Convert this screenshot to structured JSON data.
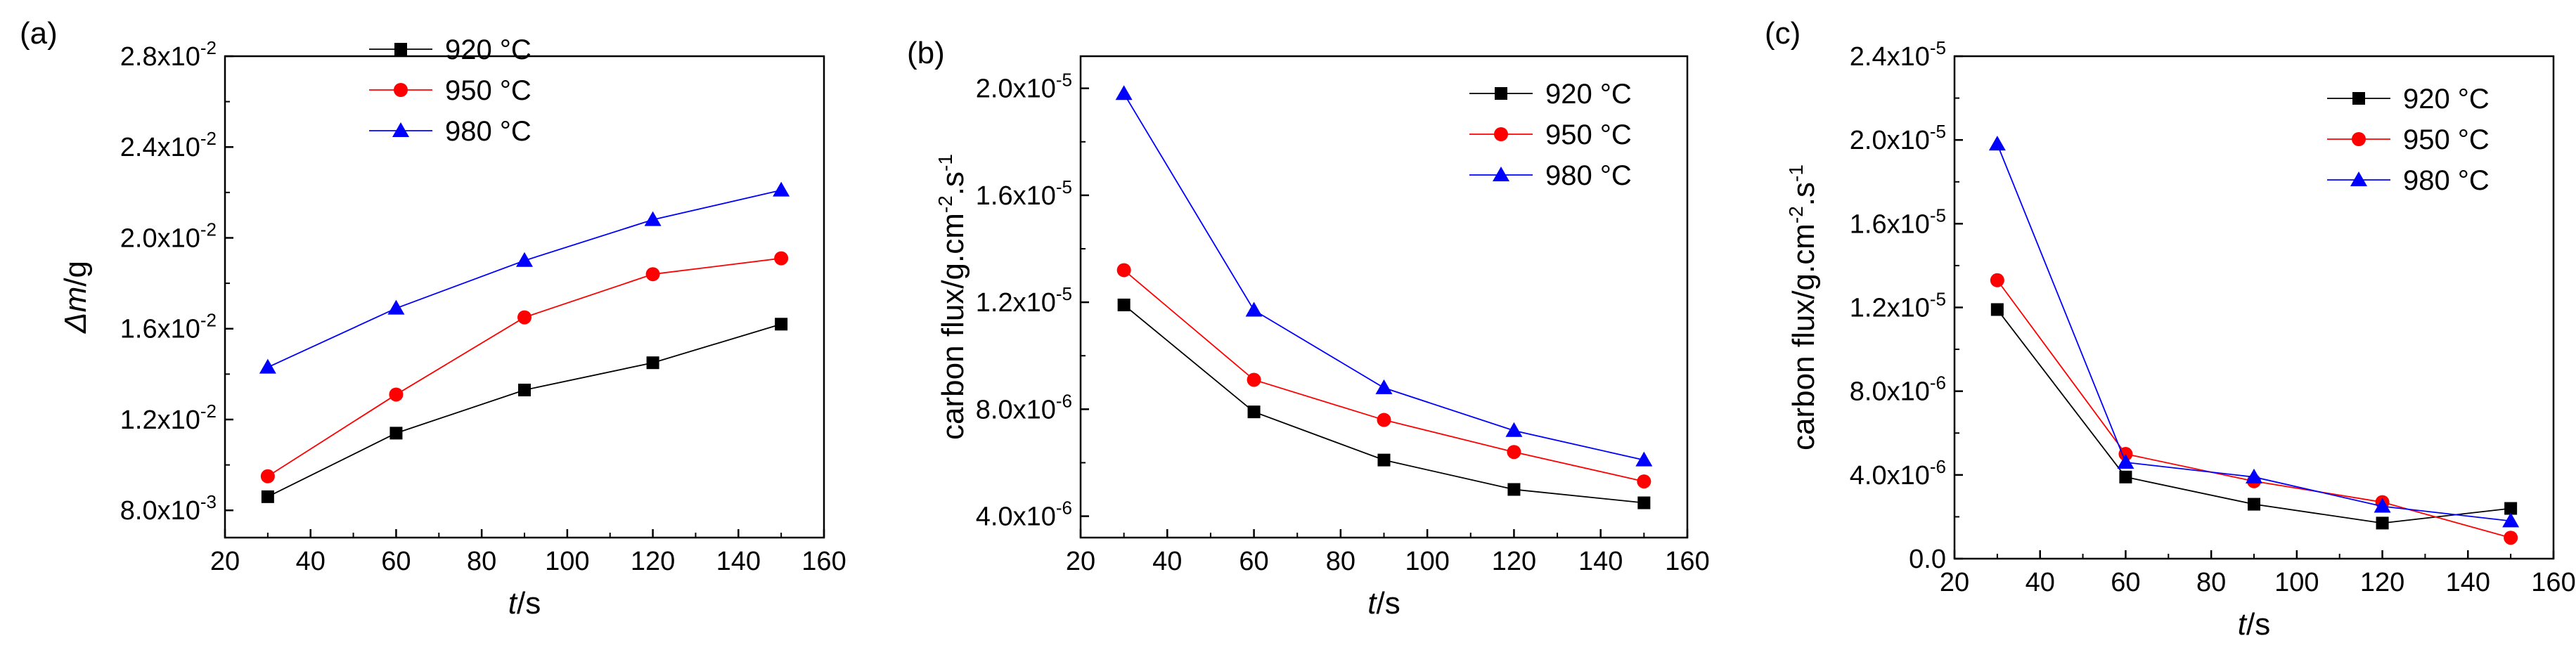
{
  "figure_labels": [
    "(a)",
    "(b)",
    "(c)"
  ],
  "colors": {
    "s920": "#000000",
    "s950": "#ff0000",
    "s980": "#0000ff",
    "axis": "#000000"
  },
  "chart_data": [
    {
      "type": "line",
      "panel": "(a)",
      "xlabel_italic": "t",
      "xlabel_unit": "/s",
      "ylabel_italic": "Δm",
      "ylabel_unit": "/g",
      "xlim": [
        20,
        160
      ],
      "ylim": [
        0.0068,
        0.028
      ],
      "xticks": [
        20,
        40,
        60,
        80,
        100,
        120,
        140,
        160
      ],
      "yticks": [
        {
          "value": 0.008,
          "mant": "8.0x10",
          "exp": "-3"
        },
        {
          "value": 0.012,
          "mant": "1.2x10",
          "exp": "-2"
        },
        {
          "value": 0.016,
          "mant": "1.6x10",
          "exp": "-2"
        },
        {
          "value": 0.02,
          "mant": "2.0x10",
          "exp": "-2"
        },
        {
          "value": 0.024,
          "mant": "2.4x10",
          "exp": "-2"
        },
        {
          "value": 0.028,
          "mant": "2.8x10",
          "exp": "-2"
        }
      ],
      "legend_position": "top-center",
      "x": [
        30,
        60,
        90,
        120,
        150
      ],
      "series": [
        {
          "name": "920 °C",
          "marker": "square",
          "color_key": "s920",
          "values": [
            0.0086,
            0.0114,
            0.0133,
            0.0145,
            0.0162
          ]
        },
        {
          "name": "950 °C",
          "marker": "circle",
          "color_key": "s950",
          "values": [
            0.0095,
            0.0131,
            0.0165,
            0.0184,
            0.0191
          ]
        },
        {
          "name": "980 °C",
          "marker": "triangle",
          "color_key": "s980",
          "values": [
            0.0143,
            0.0169,
            0.019,
            0.0208,
            0.0221
          ]
        }
      ]
    },
    {
      "type": "line",
      "panel": "(b)",
      "xlabel_italic": "t",
      "xlabel_unit": "/s",
      "ylabel_parts": [
        "carbon flux/g.cm",
        "-2",
        ".s",
        "-1"
      ],
      "xlim": [
        20,
        160
      ],
      "ylim": [
        3.2e-06,
        2.12e-05
      ],
      "xticks": [
        20,
        40,
        60,
        80,
        100,
        120,
        140,
        160
      ],
      "yticks": [
        {
          "value": 4e-06,
          "mant": "4.0x10",
          "exp": "-6"
        },
        {
          "value": 8e-06,
          "mant": "8.0x10",
          "exp": "-6"
        },
        {
          "value": 1.2e-05,
          "mant": "1.2x10",
          "exp": "-5"
        },
        {
          "value": 1.6e-05,
          "mant": "1.6x10",
          "exp": "-5"
        },
        {
          "value": 2e-05,
          "mant": "2.0x10",
          "exp": "-5"
        }
      ],
      "legend_position": "top-right",
      "x": [
        30,
        60,
        90,
        120,
        150
      ],
      "series": [
        {
          "name": "920 °C",
          "marker": "square",
          "color_key": "s920",
          "values": [
            1.19e-05,
            7.9e-06,
            6.1e-06,
            5e-06,
            4.5e-06
          ]
        },
        {
          "name": "950 °C",
          "marker": "circle",
          "color_key": "s950",
          "values": [
            1.32e-05,
            9.1e-06,
            7.6e-06,
            6.4e-06,
            5.3e-06
          ]
        },
        {
          "name": "980 °C",
          "marker": "triangle",
          "color_key": "s980",
          "values": [
            1.98e-05,
            1.17e-05,
            8.8e-06,
            7.2e-06,
            6.1e-06
          ]
        }
      ]
    },
    {
      "type": "line",
      "panel": "(c)",
      "xlabel_italic": "t",
      "xlabel_unit": "/s",
      "ylabel_parts": [
        "carbon flux/g.cm",
        "-2",
        ".s",
        "-1"
      ],
      "xlim": [
        20,
        160
      ],
      "ylim": [
        0,
        2.4e-05
      ],
      "xticks": [
        20,
        40,
        60,
        80,
        100,
        120,
        140,
        160
      ],
      "yticks": [
        {
          "value": 0,
          "mant": "0.0",
          "exp": ""
        },
        {
          "value": 4e-06,
          "mant": "4.0x10",
          "exp": "-6"
        },
        {
          "value": 8e-06,
          "mant": "8.0x10",
          "exp": "-6"
        },
        {
          "value": 1.2e-05,
          "mant": "1.2x10",
          "exp": "-5"
        },
        {
          "value": 1.6e-05,
          "mant": "1.6x10",
          "exp": "-5"
        },
        {
          "value": 2e-05,
          "mant": "2.0x10",
          "exp": "-5"
        },
        {
          "value": 2.4e-05,
          "mant": "2.4x10",
          "exp": "-5"
        }
      ],
      "legend_position": "top-right",
      "x": [
        30,
        60,
        90,
        120,
        150
      ],
      "series": [
        {
          "name": "920 °C",
          "marker": "square",
          "color_key": "s920",
          "values": [
            1.19e-05,
            3.9e-06,
            2.6e-06,
            1.7e-06,
            2.4e-06
          ]
        },
        {
          "name": "950 °C",
          "marker": "circle",
          "color_key": "s950",
          "values": [
            1.33e-05,
            5e-06,
            3.7e-06,
            2.7e-06,
            1e-06
          ]
        },
        {
          "name": "980 °C",
          "marker": "triangle",
          "color_key": "s980",
          "values": [
            1.98e-05,
            4.6e-06,
            3.9e-06,
            2.5e-06,
            1.8e-06
          ]
        }
      ]
    }
  ]
}
